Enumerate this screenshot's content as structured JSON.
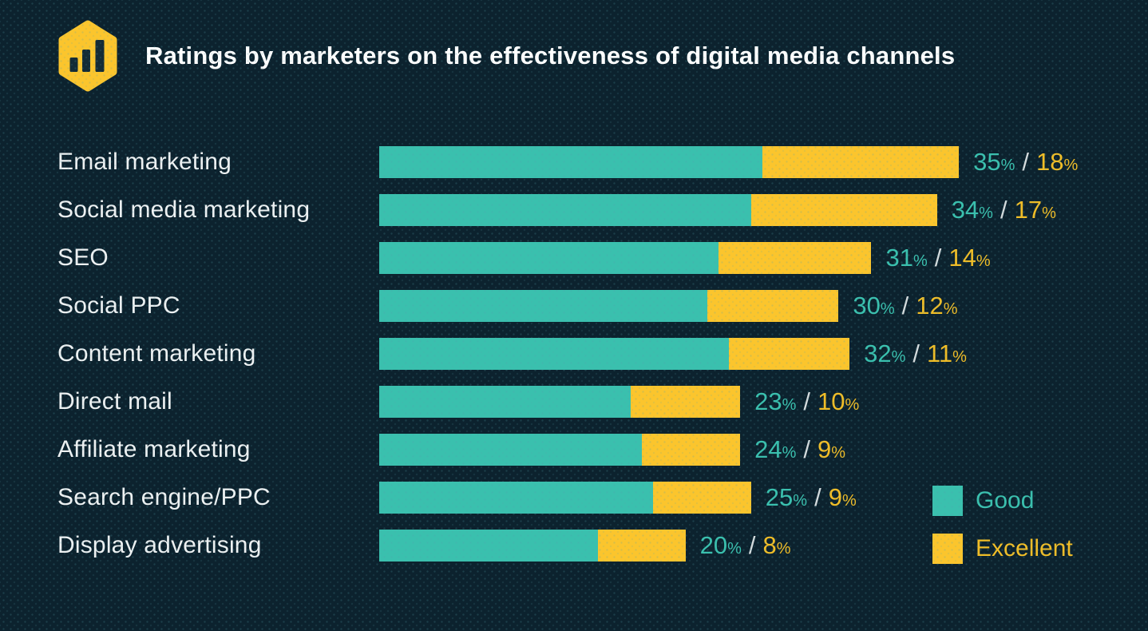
{
  "header": {
    "title": "Ratings by marketers on the effectiveness of digital media channels",
    "logo_icon": "hexagon-bar-chart-icon"
  },
  "colors": {
    "background": "#0c222e",
    "good": "#3ac0ae",
    "excellent": "#fbc52d",
    "excellent_text": "#f0bd27",
    "category_label": "#edf1f2",
    "title": "#ffffff",
    "slash": "#d4dbdd",
    "logo_glyph": "#132b36"
  },
  "chart_data": {
    "type": "bar",
    "orientation": "horizontal",
    "stacked": true,
    "title": "Ratings by marketers on the effectiveness of digital media channels",
    "xlabel": "",
    "ylabel": "",
    "categories": [
      "Email marketing",
      "Social media marketing",
      "SEO",
      "Social PPC",
      "Content marketing",
      "Direct mail",
      "Affiliate marketing",
      "Search engine/PPC",
      "Display advertising"
    ],
    "series": [
      {
        "name": "Good",
        "color": "#3ac0ae",
        "values": [
          35,
          34,
          31,
          30,
          32,
          23,
          24,
          25,
          20
        ]
      },
      {
        "name": "Excellent",
        "color": "#fbc52d",
        "values": [
          18,
          17,
          14,
          12,
          11,
          10,
          9,
          9,
          8
        ]
      }
    ],
    "value_labels": [
      "35% / 18%",
      "34% / 17%",
      "31% / 14%",
      "30% / 12%",
      "32% / 11%",
      "23% / 10%",
      "24% / 9%",
      "25% / 9%",
      "20% / 8%"
    ],
    "unit": "%",
    "grid": false,
    "axis_ticks_visible": false,
    "legend_position": "bottom-right",
    "pixels_per_percent": 13.7
  },
  "legend": {
    "items": [
      {
        "label": "Good",
        "color": "#3ac0ae"
      },
      {
        "label": "Excellent",
        "color": "#fbc52d"
      }
    ]
  }
}
